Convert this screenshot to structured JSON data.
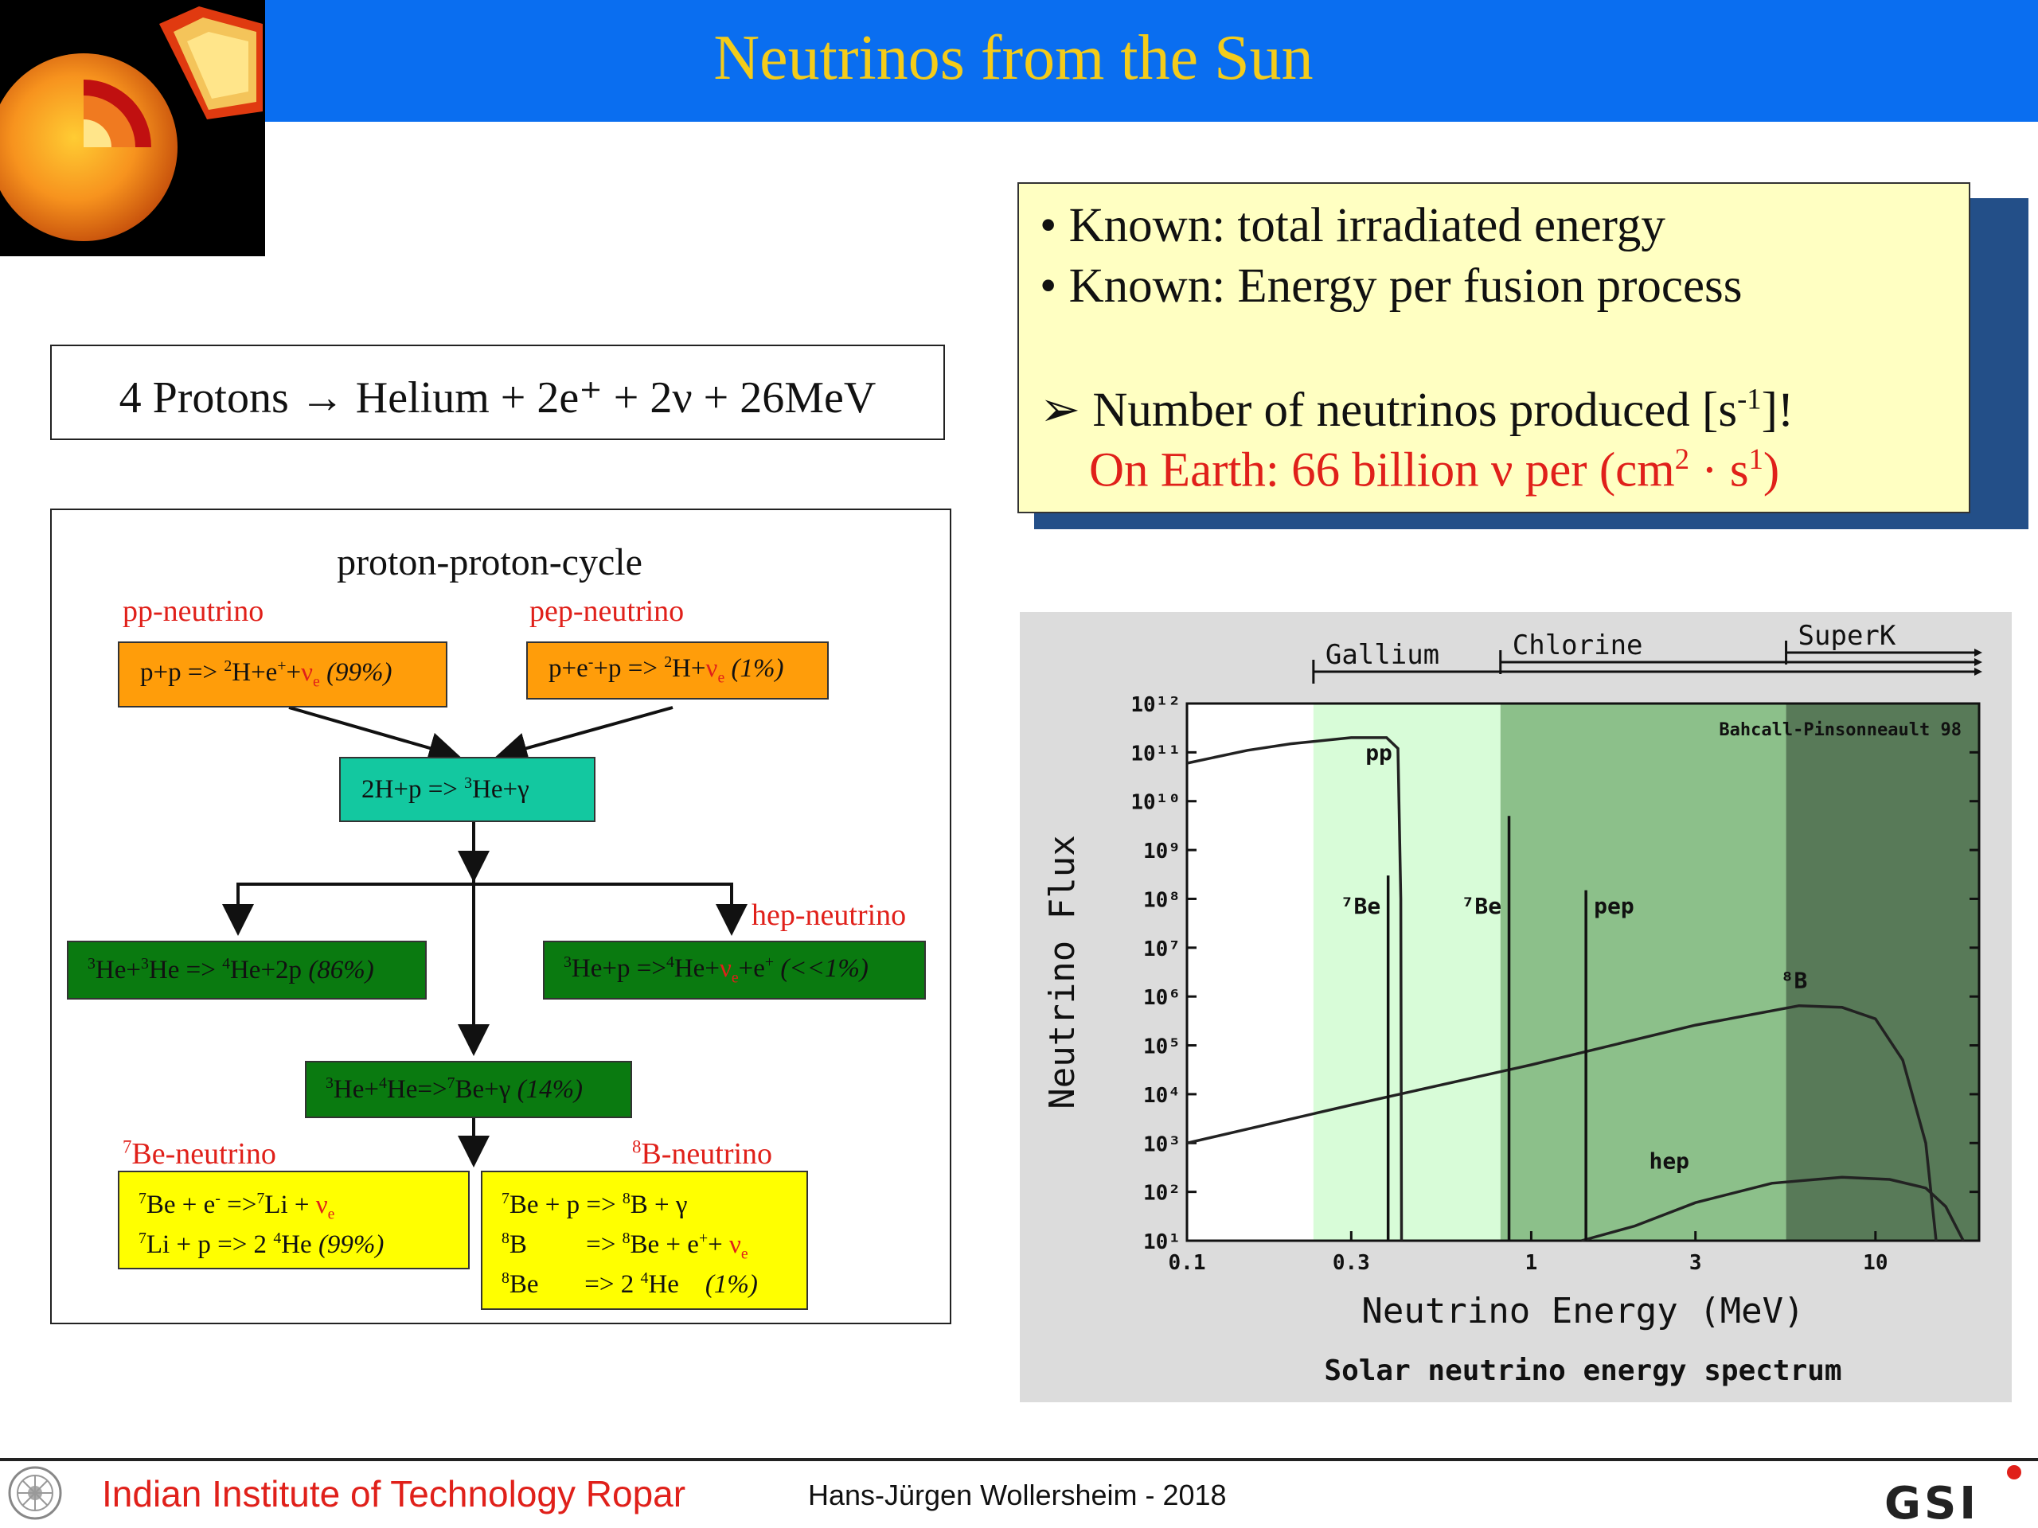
{
  "header": {
    "title": "Neutrinos from the Sun"
  },
  "equation": {
    "lhs": "4 Protons",
    "arrow": "→",
    "rhs": "Helium + 2e⁺ + 2ν + 26MeV"
  },
  "info": {
    "line1": "• Known: total irradiated energy",
    "line2": "• Known: Energy per fusion process",
    "line3_pre": "Number of neutrinos produced [s",
    "line3_sup": "-1",
    "line3_post": "]!",
    "line4_pre": "On Earth: 66 billion ν per (cm",
    "line4_sup1": "2",
    "line4_mid": " · s",
    "line4_sup2": "1",
    "line4_post": ")"
  },
  "ppcycle": {
    "title": "proton-proton-cycle",
    "pp_label": "pp-neutrino",
    "pep_label": "pep-neutrino",
    "hep_label": "hep-neutrino",
    "be7_label": "Be-neutrino",
    "be7_sup": "7",
    "b8_label": "B-neutrino",
    "b8_sup": "8",
    "pp_reaction": {
      "a": "p+p => ",
      "s1": "2",
      "b": "H+e",
      "s2": "+",
      "c": "+",
      "nu": "ν",
      "sub": "e",
      "pct": " (99%)"
    },
    "pep_reaction": {
      "a": "p+e",
      "s1": "-",
      "b": "+p => ",
      "s2": "2",
      "c": "H+",
      "nu": "ν",
      "sub": "e",
      "pct": " (1%)"
    },
    "h2_reaction": {
      "a": "2H+p => ",
      "s1": "3",
      "b": "He+γ"
    },
    "he3he3": {
      "s1": "3",
      "a": "He+",
      "s2": "3",
      "b": "He => ",
      "s3": "4",
      "c": "He+2p ",
      "pct": "(86%)"
    },
    "he3p": {
      "s1": "3",
      "a": "He+p =>",
      "s2": "4",
      "b": "He+",
      "nu": "ν",
      "sub": "e",
      "c": "+e",
      "s3": "+",
      "pct": " (<<1%)"
    },
    "he3he4": {
      "s1": "3",
      "a": "He+",
      "s2": "4",
      "b": "He=>",
      "s3": "7",
      "c": "Be+γ ",
      "pct": "(14%)"
    },
    "be7box": {
      "r1": {
        "s1": "7",
        "a": "Be + e",
        "s2": "-",
        "b": " =>",
        "s3": "7",
        "c": "Li + ",
        "nu": "ν",
        "sub": "e"
      },
      "r2": {
        "s1": "7",
        "a": "Li + p   => 2 ",
        "s2": "4",
        "b": "He    ",
        "pct": "(99%)"
      }
    },
    "b8box": {
      "r1": {
        "s1": "7",
        "a": "Be + p => ",
        "s2": "8",
        "b": "B + γ"
      },
      "r2": {
        "s1": "8",
        "a": "B         => ",
        "s2": "8",
        "b": "Be + e",
        "s3": "+",
        "c": "+ ",
        "nu": "ν",
        "sub": "e"
      },
      "r3": {
        "s1": "8",
        "a": "Be       => 2 ",
        "s2": "4",
        "b": "He    ",
        "pct": "(1%)"
      }
    }
  },
  "chart_data": {
    "type": "line",
    "title": "Solar neutrino energy spectrum",
    "xlabel": "Neutrino Energy (MeV)",
    "ylabel": "Neutrino Flux",
    "annotation": "Bahcall-Pinsonneault 98",
    "xscale": "log",
    "yscale": "log",
    "xlim": [
      0.1,
      20
    ],
    "ylim": [
      10,
      1000000000000.0
    ],
    "xticks": [
      "0.1",
      "0.3",
      "1",
      "3",
      "10"
    ],
    "xtick_values": [
      0.1,
      0.3,
      1,
      3,
      10
    ],
    "yticks": [
      "10¹",
      "10²",
      "10³",
      "10⁴",
      "10⁵",
      "10⁶",
      "10⁷",
      "10⁸",
      "10⁹",
      "10¹⁰",
      "10¹¹",
      "10¹²"
    ],
    "detectors": [
      {
        "name": "Gallium",
        "threshold": 0.233
      },
      {
        "name": "Chlorine",
        "threshold": 0.814
      },
      {
        "name": "SuperK",
        "threshold": 5.5
      }
    ],
    "series": [
      {
        "name": "pp",
        "x": [
          0.1,
          0.15,
          0.2,
          0.3,
          0.38,
          0.41,
          0.418,
          0.42
        ],
        "y": [
          60000000000.0,
          110000000000.0,
          150000000000.0,
          200000000000.0,
          200000000000.0,
          120000000000.0,
          100000000.0,
          10
        ]
      },
      {
        "name": "⁸B",
        "x": [
          0.1,
          0.3,
          1,
          3,
          6,
          8,
          10,
          12,
          14,
          15
        ],
        "y": [
          1000.0,
          6000.0,
          40000.0,
          260000.0,
          650000.0,
          600000.0,
          350000.0,
          50000.0,
          1000.0,
          10
        ]
      },
      {
        "name": "hep",
        "x": [
          1.4,
          2,
          3,
          5,
          8,
          11,
          14,
          16,
          18
        ],
        "y": [
          10,
          20,
          60,
          150,
          200,
          180,
          120,
          50,
          10
        ]
      }
    ],
    "lines": [
      {
        "name": "⁷Be",
        "x": 0.384,
        "y": 300000000.0
      },
      {
        "name": "⁷Be",
        "x": 0.862,
        "y": 5000000000.0
      },
      {
        "name": "pep",
        "x": 1.442,
        "y": 150000000.0
      }
    ]
  },
  "footer": {
    "institution": "Indian Institute of Technology Ropar",
    "author": "Hans-Jürgen Wollersheim  - 2018",
    "logo_text": "GSI"
  }
}
